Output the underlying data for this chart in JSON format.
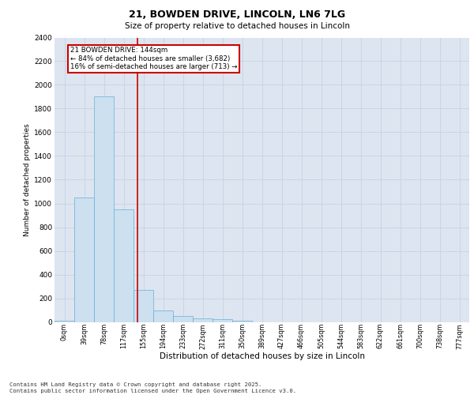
{
  "title_line1": "21, BOWDEN DRIVE, LINCOLN, LN6 7LG",
  "title_line2": "Size of property relative to detached houses in Lincoln",
  "xlabel": "Distribution of detached houses by size in Lincoln",
  "ylabel": "Number of detached properties",
  "bar_labels": [
    "0sqm",
    "39sqm",
    "78sqm",
    "117sqm",
    "155sqm",
    "194sqm",
    "233sqm",
    "272sqm",
    "311sqm",
    "350sqm",
    "389sqm",
    "427sqm",
    "466sqm",
    "505sqm",
    "544sqm",
    "583sqm",
    "622sqm",
    "661sqm",
    "700sqm",
    "738sqm",
    "777sqm"
  ],
  "bar_values": [
    10,
    1050,
    1900,
    950,
    270,
    100,
    50,
    30,
    25,
    10,
    0,
    0,
    0,
    0,
    0,
    0,
    0,
    0,
    0,
    0,
    0
  ],
  "bar_color": "#cce0f0",
  "bar_edge_color": "#6aaed6",
  "grid_color": "#c8d4e8",
  "background_color": "#dde5f0",
  "red_line_x": 3.69,
  "annotation_text": "21 BOWDEN DRIVE: 144sqm\n← 84% of detached houses are smaller (3,682)\n16% of semi-detached houses are larger (713) →",
  "annotation_box_color": "#ffffff",
  "annotation_border_color": "#cc0000",
  "red_line_color": "#cc0000",
  "ylim": [
    0,
    2400
  ],
  "yticks": [
    0,
    200,
    400,
    600,
    800,
    1000,
    1200,
    1400,
    1600,
    1800,
    2000,
    2200,
    2400
  ],
  "footer_line1": "Contains HM Land Registry data © Crown copyright and database right 2025.",
  "footer_line2": "Contains public sector information licensed under the Open Government Licence v3.0."
}
